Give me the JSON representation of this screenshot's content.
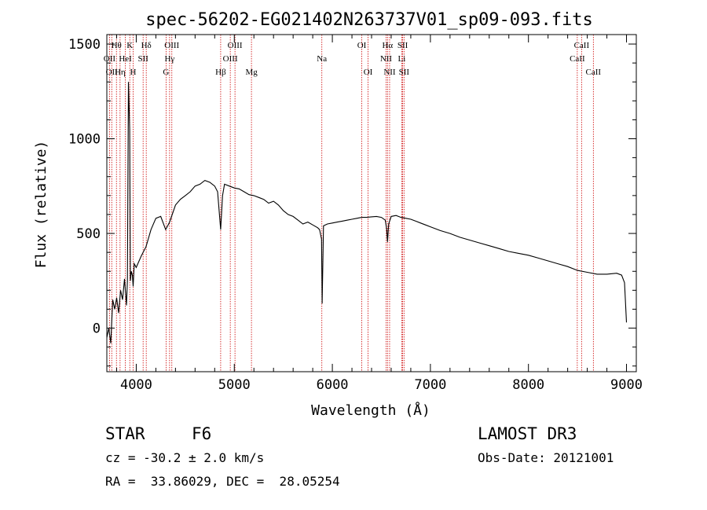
{
  "chart_data": {
    "type": "line",
    "title": "spec-56202-EG021402N263737V01_sp09-093.fits",
    "xlabel": "Wavelength (Å)",
    "ylabel": "Flux (relative)",
    "xlim": [
      3700,
      9100
    ],
    "ylim": [
      -230,
      1550
    ],
    "xticks": [
      4000,
      5000,
      6000,
      7000,
      8000,
      9000
    ],
    "yticks": [
      0,
      500,
      1000,
      1500
    ],
    "grid": false,
    "line_color": "#000000",
    "marker_color": "#cc0000",
    "series": [
      {
        "x": [
          3700,
          3720,
          3740,
          3760,
          3780,
          3800,
          3820,
          3840,
          3860,
          3880,
          3900,
          3910,
          3920,
          3933,
          3940,
          3950,
          3960,
          3968,
          3980,
          4000,
          4050,
          4100,
          4150,
          4200,
          4250,
          4300,
          4340,
          4400,
          4450,
          4500,
          4550,
          4600,
          4650,
          4700,
          4750,
          4800,
          4830,
          4861,
          4880,
          4900,
          4950,
          5000,
          5050,
          5100,
          5150,
          5200,
          5250,
          5300,
          5350,
          5400,
          5450,
          5500,
          5550,
          5600,
          5650,
          5700,
          5750,
          5800,
          5850,
          5870,
          5890,
          5896,
          5910,
          5950,
          6000,
          6050,
          6100,
          6150,
          6200,
          6250,
          6300,
          6350,
          6400,
          6450,
          6500,
          6540,
          6555,
          6563,
          6575,
          6600,
          6650,
          6700,
          6750,
          6800,
          6850,
          6900,
          6950,
          7000,
          7100,
          7200,
          7300,
          7400,
          7500,
          7600,
          7700,
          7800,
          7900,
          8000,
          8100,
          8200,
          8300,
          8400,
          8500,
          8600,
          8700,
          8800,
          8900,
          8950,
          8980,
          9000
        ],
        "y": [
          -50,
          0,
          -80,
          150,
          100,
          160,
          80,
          200,
          150,
          260,
          120,
          250,
          1300,
          1050,
          250,
          300,
          280,
          220,
          340,
          320,
          380,
          430,
          520,
          580,
          590,
          520,
          560,
          650,
          680,
          700,
          720,
          750,
          760,
          780,
          770,
          750,
          720,
          520,
          700,
          760,
          750,
          740,
          735,
          720,
          705,
          700,
          690,
          680,
          660,
          670,
          650,
          620,
          600,
          590,
          570,
          550,
          560,
          545,
          530,
          520,
          470,
          130,
          540,
          550,
          555,
          560,
          565,
          570,
          575,
          580,
          585,
          585,
          588,
          590,
          585,
          570,
          520,
          455,
          550,
          590,
          595,
          585,
          580,
          575,
          565,
          555,
          545,
          535,
          515,
          500,
          480,
          465,
          450,
          435,
          420,
          405,
          395,
          385,
          370,
          355,
          340,
          325,
          305,
          295,
          285,
          285,
          290,
          280,
          240,
          30
        ]
      }
    ],
    "line_markers": [
      {
        "wavelength": 3727,
        "label": "OII",
        "row": 2
      },
      {
        "wavelength": 3750,
        "label": "OII",
        "row": 3
      },
      {
        "wavelength": 3798,
        "label": "Hθ",
        "row": 1
      },
      {
        "wavelength": 3835,
        "label": "Hη",
        "row": 3
      },
      {
        "wavelength": 3889,
        "label": "HeI",
        "row": 2
      },
      {
        "wavelength": 3934,
        "label": "K",
        "row": 1
      },
      {
        "wavelength": 3968,
        "label": "H",
        "row": 3
      },
      {
        "wavelength": 4070,
        "label": "SII",
        "row": 2
      },
      {
        "wavelength": 4102,
        "label": "Hδ",
        "row": 1
      },
      {
        "wavelength": 4304,
        "label": "G",
        "row": 3
      },
      {
        "wavelength": 4340,
        "label": "Hγ",
        "row": 2
      },
      {
        "wavelength": 4363,
        "label": "OIII",
        "row": 1
      },
      {
        "wavelength": 4861,
        "label": "Hβ",
        "row": 3
      },
      {
        "wavelength": 4959,
        "label": "OIII",
        "row": 2
      },
      {
        "wavelength": 5007,
        "label": "OIII",
        "row": 1
      },
      {
        "wavelength": 5175,
        "label": "Mg",
        "row": 3
      },
      {
        "wavelength": 5893,
        "label": "Na",
        "row": 2
      },
      {
        "wavelength": 6300,
        "label": "OI",
        "row": 1
      },
      {
        "wavelength": 6364,
        "label": "OI",
        "row": 3
      },
      {
        "wavelength": 6548,
        "label": "NII",
        "row": 2
      },
      {
        "wavelength": 6563,
        "label": "Hα",
        "row": 1
      },
      {
        "wavelength": 6584,
        "label": "NII",
        "row": 3
      },
      {
        "wavelength": 6708,
        "label": "Li",
        "row": 2
      },
      {
        "wavelength": 6717,
        "label": "SII",
        "row": 1
      },
      {
        "wavelength": 6731,
        "label": "SII",
        "row": 3
      },
      {
        "wavelength": 8498,
        "label": "CaII",
        "row": 2
      },
      {
        "wavelength": 8542,
        "label": "CaII",
        "row": 1
      },
      {
        "wavelength": 8662,
        "label": "CaII",
        "row": 3
      }
    ]
  },
  "info": {
    "object_type": "STAR",
    "subclass": "F6",
    "survey": "LAMOST DR3",
    "redshift": "cz = -30.2 ± 2.0 km/s",
    "obs_date": "Obs-Date: 20121001",
    "coords": "RA =  33.86029, DEC =  28.05254"
  }
}
